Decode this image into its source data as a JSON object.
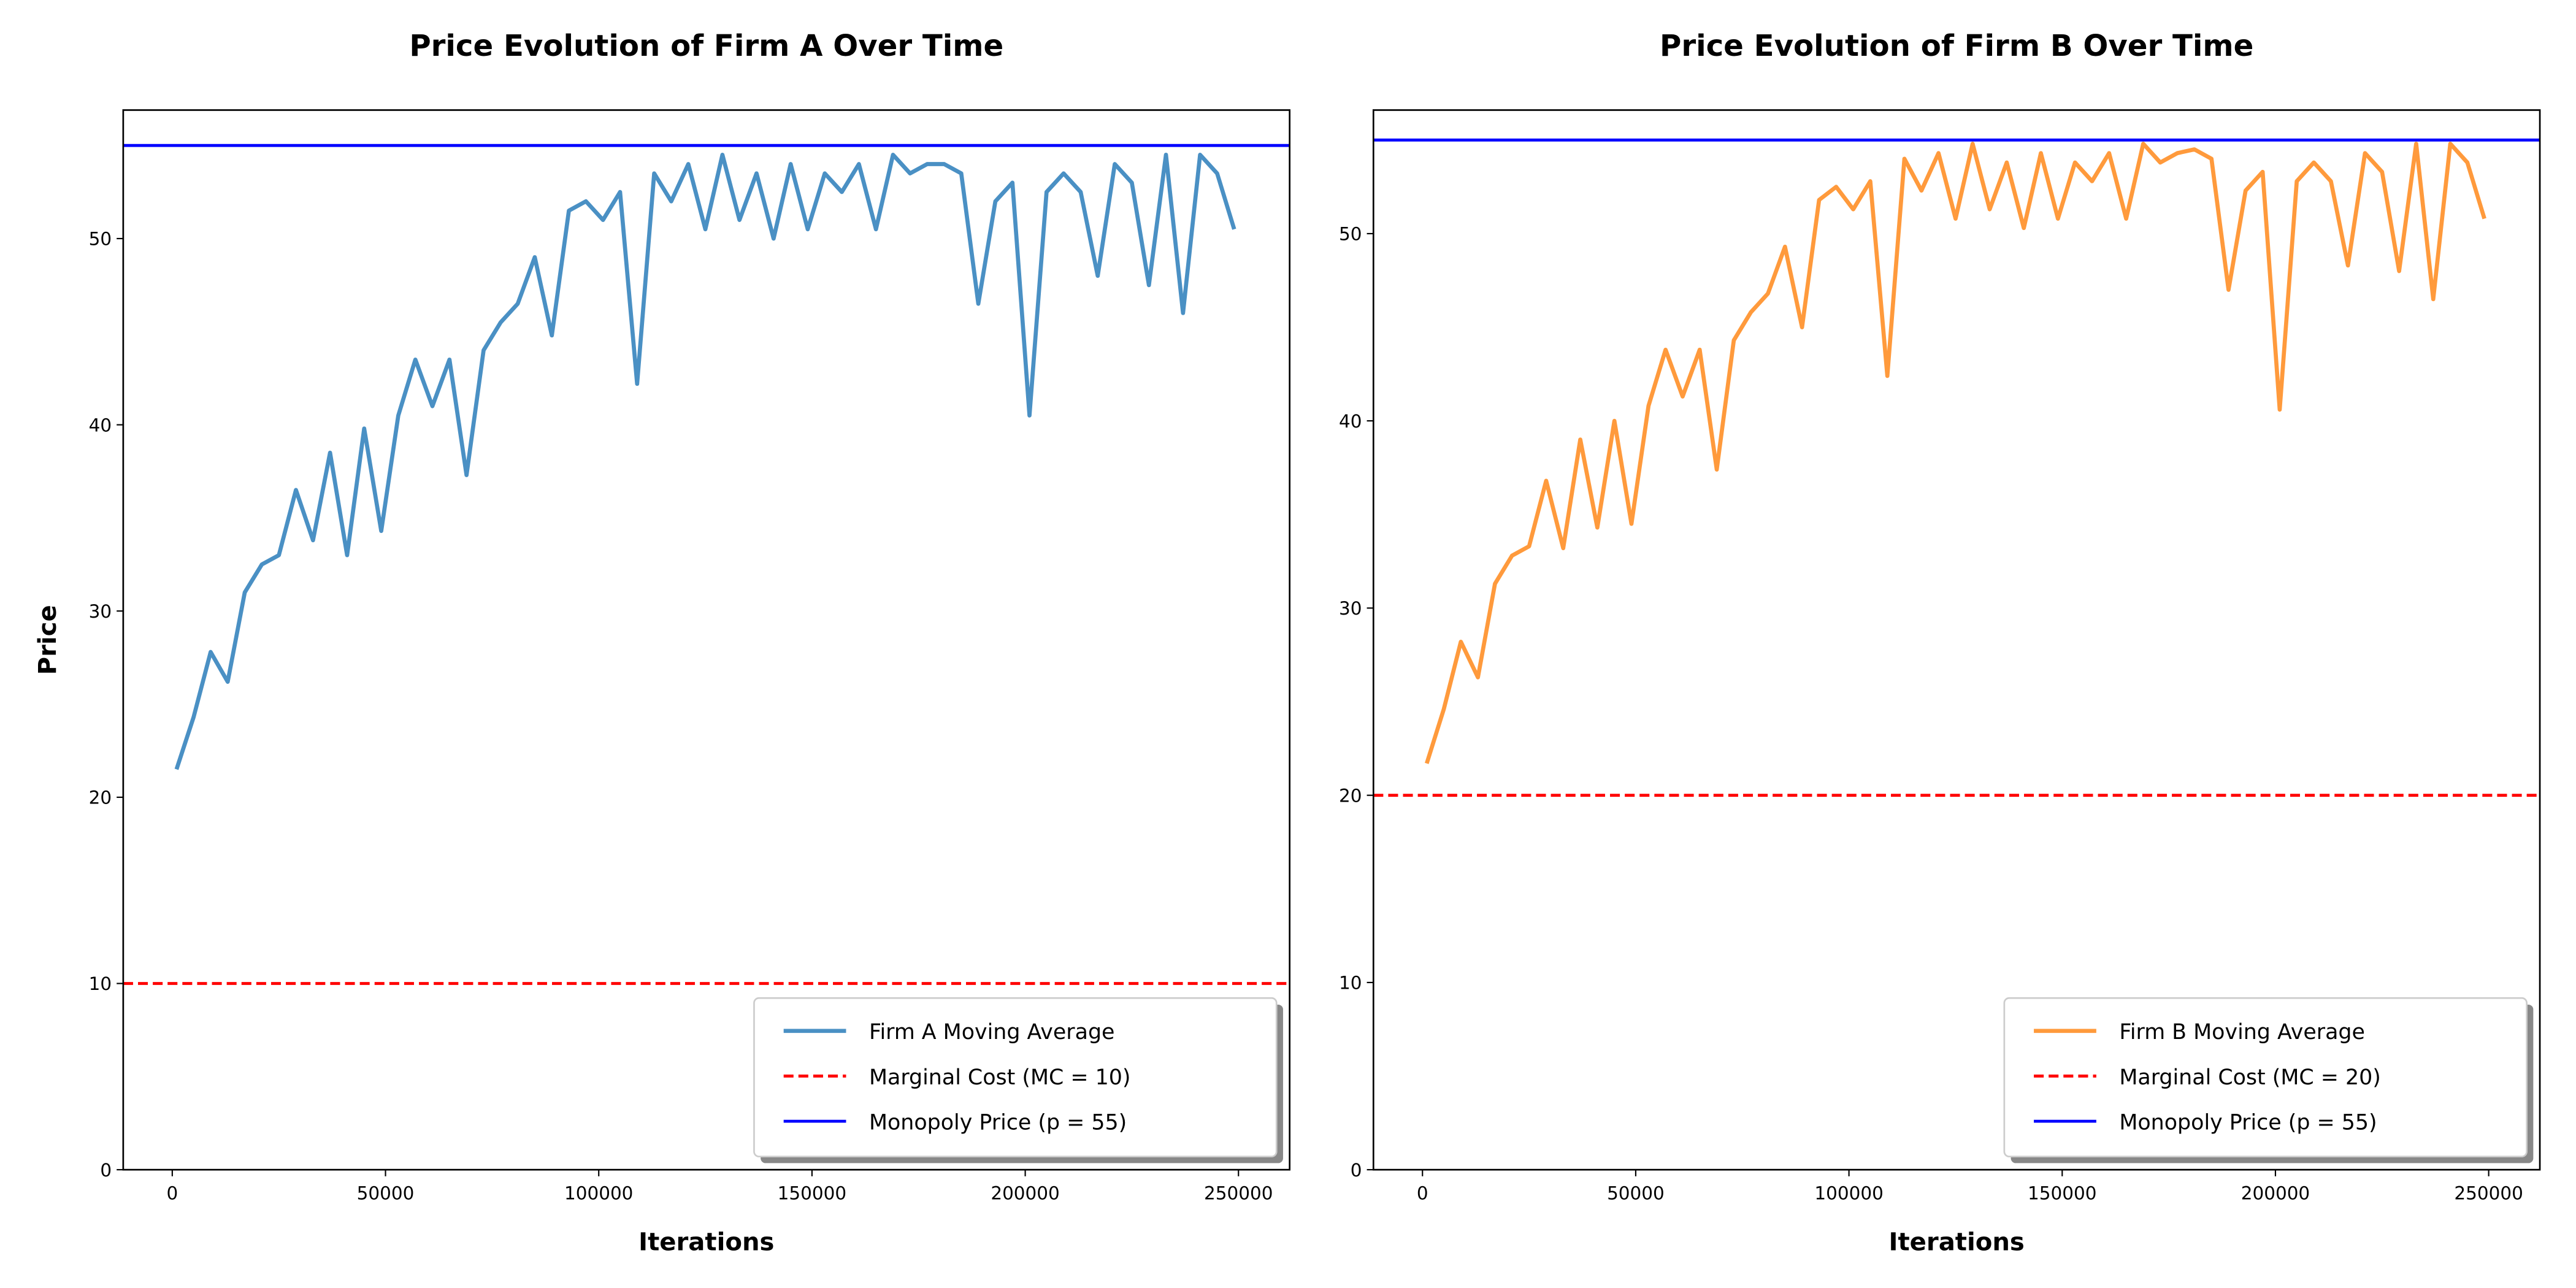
{
  "chart_data": [
    {
      "type": "line",
      "title": "Price Evolution of Firm A Over Time",
      "xlabel": "Iterations",
      "ylabel": "Price",
      "x": [
        1000,
        5000,
        9000,
        13000,
        17000,
        21000,
        25000,
        29000,
        33000,
        37000,
        41000,
        45000,
        49000,
        53000,
        57000,
        61000,
        65000,
        69000,
        73000,
        77000,
        81000,
        85000,
        89000,
        93000,
        97000,
        101000,
        105000,
        109000,
        113000,
        117000,
        121000,
        125000,
        129000,
        133000,
        137000,
        141000,
        145000,
        149000,
        153000,
        157000,
        161000,
        165000,
        169000,
        173000,
        177000,
        181000,
        185000,
        189000,
        193000,
        197000,
        201000,
        205000,
        209000,
        213000,
        217000,
        221000,
        225000,
        229000,
        233000,
        237000,
        241000,
        245000,
        249000
      ],
      "series": [
        {
          "name": "Firm A Moving Average",
          "color": "#4a90c4",
          "values": [
            21.5,
            24.3,
            27.8,
            26.2,
            31.0,
            32.5,
            33.0,
            36.5,
            33.8,
            38.5,
            33.0,
            39.8,
            34.3,
            40.5,
            43.5,
            41.0,
            43.5,
            37.3,
            44.0,
            45.5,
            46.5,
            49.0,
            44.8,
            51.5,
            52.0,
            51.0,
            52.5,
            42.2,
            53.5,
            52.0,
            54.0,
            50.5,
            54.5,
            51.0,
            53.5,
            50.0,
            54.0,
            50.5,
            53.5,
            52.5,
            54.0,
            50.5,
            54.5,
            53.5,
            54.0,
            54.0,
            53.5,
            46.5,
            52.0,
            53.0,
            40.5,
            52.5,
            53.5,
            52.5,
            48.0,
            54.0,
            53.0,
            47.5,
            54.5,
            46.0,
            54.5,
            53.5,
            50.5
          ]
        }
      ],
      "hlines": [
        {
          "name": "Marginal Cost (MC = 10)",
          "value": 10,
          "color": "#ff0000",
          "dashed": true
        },
        {
          "name": "Monopoly Price (p = 55)",
          "value": 55,
          "color": "#0000ff",
          "dashed": false
        }
      ],
      "xlim": [
        -11500,
        262000
      ],
      "ylim": [
        0,
        56.9
      ],
      "xticks": [
        0,
        50000,
        100000,
        150000,
        200000,
        250000
      ],
      "yticks": [
        0,
        10,
        20,
        30,
        40,
        50
      ],
      "legend": "lower right"
    },
    {
      "type": "line",
      "title": "Price Evolution of Firm B Over Time",
      "xlabel": "Iterations",
      "x": [
        1000,
        5000,
        9000,
        13000,
        17000,
        21000,
        25000,
        29000,
        33000,
        37000,
        41000,
        45000,
        49000,
        53000,
        57000,
        61000,
        65000,
        69000,
        73000,
        77000,
        81000,
        85000,
        89000,
        93000,
        97000,
        101000,
        105000,
        109000,
        113000,
        117000,
        121000,
        125000,
        129000,
        133000,
        137000,
        141000,
        145000,
        149000,
        153000,
        157000,
        161000,
        165000,
        169000,
        173000,
        177000,
        181000,
        185000,
        189000,
        193000,
        197000,
        201000,
        205000,
        209000,
        213000,
        217000,
        221000,
        225000,
        229000,
        233000,
        237000,
        241000,
        245000,
        249000
      ],
      "series": [
        {
          "name": "Firm B Moving Average",
          "color": "#ff9a3c",
          "values": [
            21.7,
            24.6,
            28.2,
            26.3,
            31.3,
            32.8,
            33.3,
            36.8,
            33.2,
            39.0,
            34.3,
            40.0,
            34.5,
            40.8,
            43.8,
            41.3,
            43.8,
            37.4,
            44.3,
            45.8,
            46.8,
            49.3,
            45.0,
            51.8,
            52.5,
            51.3,
            52.8,
            42.4,
            54.0,
            52.3,
            54.3,
            50.8,
            54.8,
            51.3,
            53.8,
            50.3,
            54.3,
            50.8,
            53.8,
            52.8,
            54.3,
            50.8,
            54.8,
            53.8,
            54.3,
            54.5,
            54.0,
            47.0,
            52.3,
            53.3,
            40.6,
            52.8,
            53.8,
            52.8,
            48.3,
            54.3,
            53.3,
            48.0,
            54.8,
            46.5,
            54.8,
            53.8,
            50.8
          ]
        }
      ],
      "hlines": [
        {
          "name": "Marginal Cost (MC = 20)",
          "value": 20,
          "color": "#ff0000",
          "dashed": true
        },
        {
          "name": "Monopoly Price (p = 55)",
          "value": 55,
          "color": "#0000ff",
          "dashed": false
        }
      ],
      "xlim": [
        -11500,
        262000
      ],
      "ylim": [
        0,
        56.6
      ],
      "xticks": [
        0,
        50000,
        100000,
        150000,
        200000,
        250000
      ],
      "yticks": [
        0,
        10,
        20,
        30,
        40,
        50
      ],
      "legend": "lower right"
    }
  ]
}
